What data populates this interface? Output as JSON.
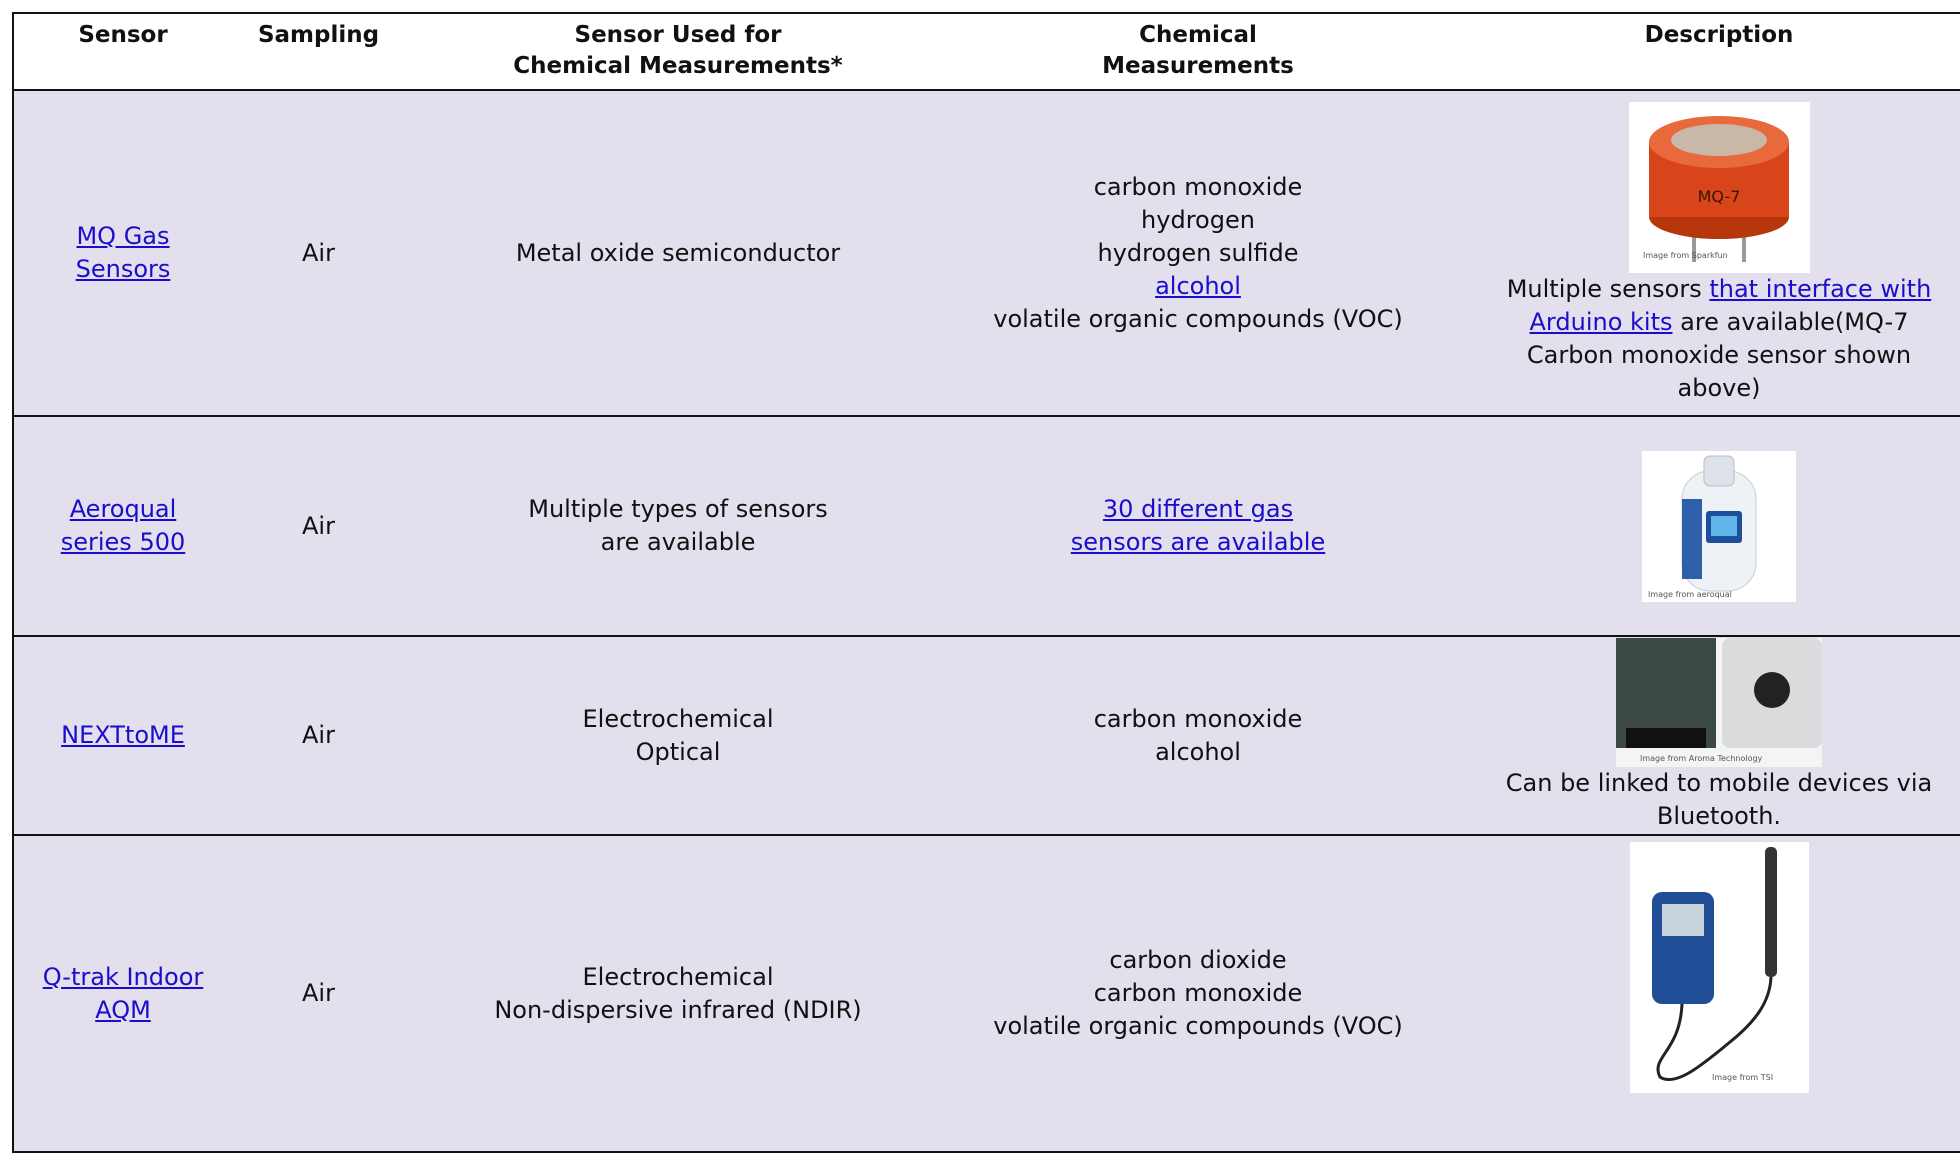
{
  "table": {
    "headers": [
      [
        "Sensor"
      ],
      [
        "Sampling"
      ],
      [
        "Sensor Used for",
        "Chemical Measurements*"
      ],
      [
        "Chemical",
        "Measurements"
      ],
      [
        "Description"
      ]
    ],
    "rows": [
      {
        "sensor": "MQ Gas Sensors",
        "sampling": "Air",
        "sensor_used": [
          "Metal oxide semiconductor"
        ],
        "measurements": [
          "carbon monoxide",
          "hydrogen",
          "hydrogen sulfide",
          "alcohol",
          "volatile organic compounds (VOC)"
        ],
        "image_credit": "Image from Sparkfun",
        "image_label": "MQ-7",
        "description": [
          "Multiple sensors ",
          "that interface with Arduino kits",
          " are available(MQ-7 Carbon monoxide sensor shown above)"
        ]
      },
      {
        "sensor": "Aeroqual series 500",
        "sampling": "Air",
        "sensor_used": [
          "Multiple types of sensors",
          "are available"
        ],
        "measurements": [
          "30 different gas",
          "sensors are available"
        ],
        "image_credit": "Image from aeroqual"
      },
      {
        "sensor": "NEXTtoME",
        "sampling": "Air",
        "sensor_used": [
          "Electrochemical",
          "Optical"
        ],
        "measurements": [
          "carbon monoxide",
          "alcohol"
        ],
        "image_credit": "Image from Aroma Technology",
        "description": [
          "Can be linked to mobile devices via Bluetooth."
        ]
      },
      {
        "sensor": "Q-trak Indoor AQM",
        "sampling": "Air",
        "sensor_used": [
          "Electrochemical",
          "Non-dispersive infrared (NDIR)"
        ],
        "measurements": [
          "carbon dioxide",
          "carbon monoxide",
          "volatile organic compounds (VOC)"
        ],
        "image_credit": "Image from TSI"
      }
    ]
  }
}
